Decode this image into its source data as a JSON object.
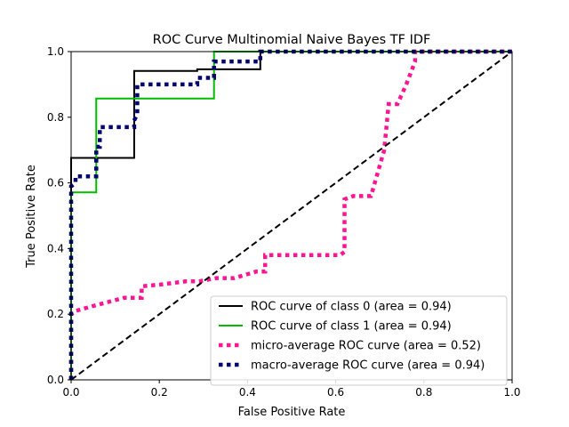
{
  "chart_data": {
    "type": "line",
    "title": "ROC Curve Multinomial Naive Bayes TF IDF",
    "xlabel": "False Positive Rate",
    "ylabel": "True Positive Rate",
    "xlim": [
      0.0,
      1.0
    ],
    "ylim": [
      0.0,
      1.0
    ],
    "xticks": [
      "0.0",
      "0.2",
      "0.4",
      "0.6",
      "0.8",
      "1.0"
    ],
    "yticks": [
      "0.0",
      "0.2",
      "0.4",
      "0.6",
      "0.8",
      "1.0"
    ],
    "grid": false,
    "legend_position": "lower-right",
    "series": [
      {
        "name": "ROC curve of class 0 (area = 0.94)",
        "color": "#000000",
        "style": "solid",
        "x": [
          0.0,
          0.0,
          0.143,
          0.143,
          0.286,
          0.286,
          0.429,
          0.429,
          1.0
        ],
        "y": [
          0.0,
          0.676,
          0.676,
          0.941,
          0.941,
          0.946,
          0.946,
          1.0,
          1.0
        ]
      },
      {
        "name": "ROC curve of class 1 (area = 0.94)",
        "color": "#00bb00",
        "style": "solid",
        "x": [
          0.0,
          0.0,
          0.057,
          0.057,
          0.143,
          0.143,
          0.324,
          0.324,
          1.0
        ],
        "y": [
          0.0,
          0.571,
          0.571,
          0.857,
          0.857,
          0.857,
          0.857,
          1.0,
          1.0
        ]
      },
      {
        "name": "micro-average ROC curve (area = 0.52)",
        "color": "#ff1493",
        "style": "dotted",
        "x": [
          0.0,
          0.0,
          0.01,
          0.05,
          0.12,
          0.16,
          0.16,
          0.2,
          0.26,
          0.29,
          0.33,
          0.37,
          0.42,
          0.44,
          0.44,
          0.5,
          0.61,
          0.62,
          0.62,
          0.64,
          0.68,
          0.71,
          0.72,
          0.74,
          0.74,
          0.76,
          0.78,
          0.78,
          0.82,
          0.9,
          1.0
        ],
        "y": [
          0.0,
          0.2,
          0.21,
          0.225,
          0.25,
          0.25,
          0.285,
          0.29,
          0.3,
          0.3,
          0.31,
          0.31,
          0.33,
          0.33,
          0.38,
          0.38,
          0.38,
          0.39,
          0.55,
          0.56,
          0.56,
          0.7,
          0.84,
          0.84,
          0.84,
          0.9,
          0.97,
          1.0,
          1.0,
          1.0,
          1.0
        ]
      },
      {
        "name": "macro-average ROC curve (area = 0.94)",
        "color": "#00006f",
        "style": "dotted",
        "x": [
          0.0,
          0.0,
          0.01,
          0.01,
          0.057,
          0.057,
          0.065,
          0.065,
          0.143,
          0.143,
          0.15,
          0.15,
          0.286,
          0.286,
          0.324,
          0.324,
          0.429,
          0.429,
          1.0
        ],
        "y": [
          0.0,
          0.59,
          0.6,
          0.62,
          0.62,
          0.71,
          0.71,
          0.77,
          0.77,
          0.79,
          0.81,
          0.9,
          0.9,
          0.92,
          0.92,
          0.97,
          0.97,
          1.0,
          1.0
        ]
      },
      {
        "name": "",
        "color": "#000000",
        "style": "dashed",
        "x": [
          0.0,
          1.0
        ],
        "y": [
          0.0,
          1.0
        ]
      }
    ]
  }
}
